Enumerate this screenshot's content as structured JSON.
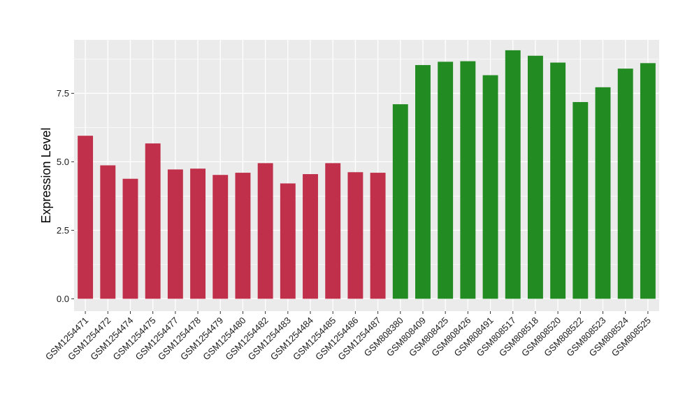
{
  "chart_data": {
    "type": "bar",
    "title": "",
    "xlabel": "",
    "ylabel": "Expression Level",
    "ylim": [
      -0.45,
      9.45
    ],
    "yticks": [
      0.0,
      2.5,
      5.0,
      7.5
    ],
    "ytick_labels": [
      "0.0",
      "2.5",
      "5.0",
      "7.5"
    ],
    "grid": true,
    "legend": "none",
    "categories": [
      "GSM1254471",
      "GSM1254472",
      "GSM1254474",
      "GSM1254475",
      "GSM1254477",
      "GSM1254478",
      "GSM1254479",
      "GSM1254480",
      "GSM1254482",
      "GSM1254483",
      "GSM1254484",
      "GSM1254485",
      "GSM1254486",
      "GSM1254487",
      "GSM808380",
      "GSM808409",
      "GSM808425",
      "GSM808426",
      "GSM808491",
      "GSM808517",
      "GSM808518",
      "GSM808520",
      "GSM808522",
      "GSM808523",
      "GSM808524",
      "GSM808525"
    ],
    "values": [
      5.95,
      4.87,
      4.38,
      5.67,
      4.72,
      4.75,
      4.52,
      4.6,
      4.95,
      4.21,
      4.55,
      4.95,
      4.62,
      4.6,
      7.1,
      8.53,
      8.65,
      8.67,
      8.16,
      9.07,
      8.87,
      8.62,
      7.18,
      7.72,
      8.4,
      8.6
    ],
    "bar_colors": [
      "#c0304a",
      "#c0304a",
      "#c0304a",
      "#c0304a",
      "#c0304a",
      "#c0304a",
      "#c0304a",
      "#c0304a",
      "#c0304a",
      "#c0304a",
      "#c0304a",
      "#c0304a",
      "#c0304a",
      "#c0304a",
      "#228b22",
      "#228b22",
      "#228b22",
      "#228b22",
      "#228b22",
      "#228b22",
      "#228b22",
      "#228b22",
      "#228b22",
      "#228b22",
      "#228b22",
      "#228b22"
    ],
    "panel_background": "#ebebeb",
    "grid_color": "#ffffff"
  }
}
